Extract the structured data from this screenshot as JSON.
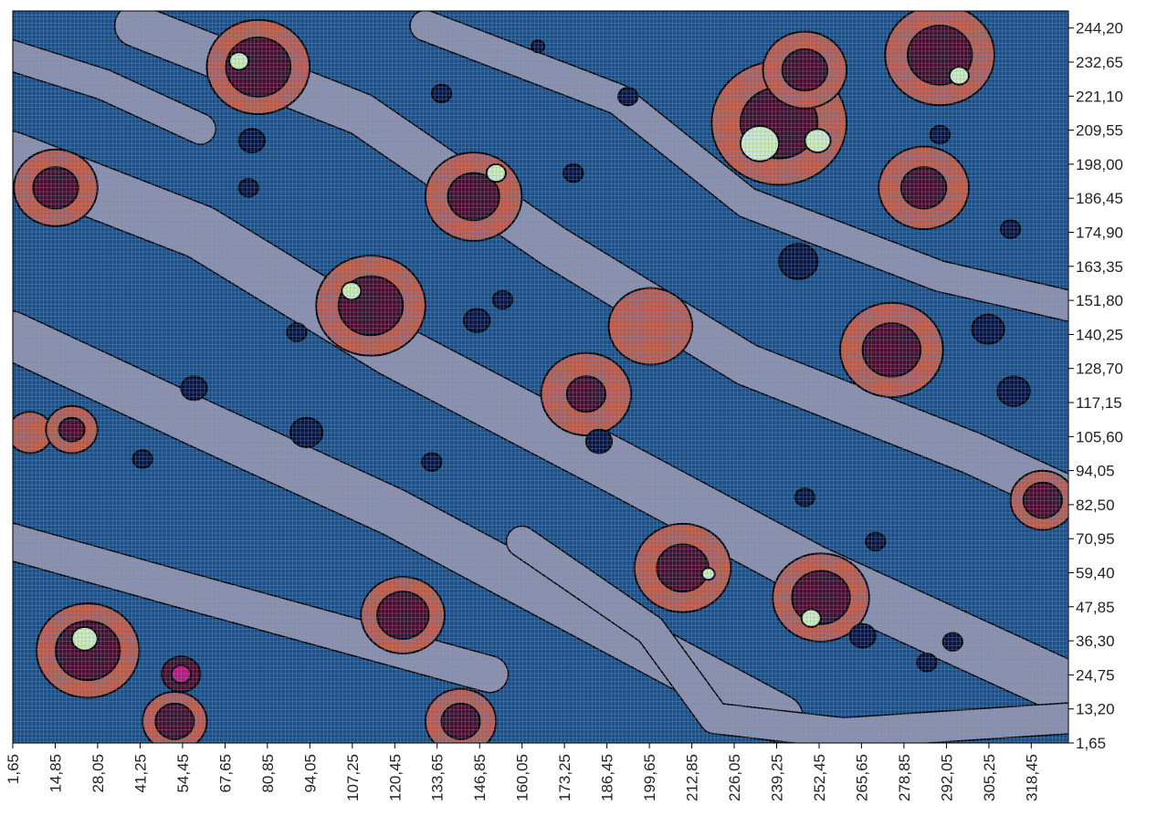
{
  "chart_data": {
    "type": "heatmap",
    "subtype": "filled-contour",
    "title": "",
    "xlabel": "",
    "ylabel": "",
    "x_ticks": [
      "1,65",
      "14,85",
      "28,05",
      "41,25",
      "54,45",
      "67,65",
      "80,85",
      "94,05",
      "107,25",
      "120,45",
      "133,65",
      "146,85",
      "160,05",
      "173,25",
      "186,45",
      "199,65",
      "212,85",
      "226,05",
      "239,25",
      "252,45",
      "265,65",
      "278,85",
      "292,05",
      "305,25",
      "318,45"
    ],
    "y_ticks": [
      "1,65",
      "13,20",
      "24,75",
      "36,30",
      "47,85",
      "59,40",
      "70,95",
      "82,50",
      "94,05",
      "105,60",
      "117,15",
      "128,70",
      "140,25",
      "151,80",
      "163,35",
      "174,90",
      "186,45",
      "198,00",
      "209,55",
      "221,10",
      "232,65",
      "244,20"
    ],
    "xlim": [
      1.65,
      330
    ],
    "ylim": [
      1.65,
      250
    ],
    "y_axis_side": "right",
    "grid": true,
    "colors": {
      "level_0": "#0b1440",
      "level_1": "#1d4f86",
      "level_2": "#8c8da8",
      "level_3": "#b85a4c",
      "level_4": "#4a0e2a",
      "level_5": "#cfe9b9",
      "level_6": "#c0157a",
      "contour_line": "#000000",
      "grid_line": "#7aa9d8"
    },
    "levels": [
      "level_0",
      "level_1",
      "level_2",
      "level_3",
      "level_4",
      "level_5",
      "level_6"
    ],
    "features": [
      {
        "x": 25,
        "y": 33,
        "r": 16,
        "level": 3
      },
      {
        "x": 25,
        "y": 33,
        "r": 10,
        "level": 4
      },
      {
        "x": 24,
        "y": 37,
        "r": 4,
        "level": 5
      },
      {
        "x": 54,
        "y": 25,
        "r": 6,
        "level": 4
      },
      {
        "x": 54,
        "y": 25,
        "r": 3,
        "level": 6
      },
      {
        "x": 52,
        "y": 9,
        "r": 10,
        "level": 3
      },
      {
        "x": 52,
        "y": 9,
        "r": 6,
        "level": 4
      },
      {
        "x": 123,
        "y": 45,
        "r": 13,
        "level": 3
      },
      {
        "x": 123,
        "y": 45,
        "r": 8,
        "level": 4
      },
      {
        "x": 141,
        "y": 9,
        "r": 11,
        "level": 3
      },
      {
        "x": 141,
        "y": 9,
        "r": 6,
        "level": 4
      },
      {
        "x": 210,
        "y": 61,
        "r": 15,
        "level": 3
      },
      {
        "x": 210,
        "y": 61,
        "r": 8,
        "level": 4
      },
      {
        "x": 218,
        "y": 59,
        "r": 2,
        "level": 5
      },
      {
        "x": 253,
        "y": 51,
        "r": 15,
        "level": 3
      },
      {
        "x": 253,
        "y": 51,
        "r": 9,
        "level": 4
      },
      {
        "x": 250,
        "y": 44,
        "r": 3,
        "level": 5
      },
      {
        "x": 322,
        "y": 84,
        "r": 10,
        "level": 3
      },
      {
        "x": 322,
        "y": 84,
        "r": 6,
        "level": 4
      },
      {
        "x": 7,
        "y": 107,
        "r": 7,
        "level": 3
      },
      {
        "x": 20,
        "y": 108,
        "r": 8,
        "level": 3
      },
      {
        "x": 20,
        "y": 108,
        "r": 4,
        "level": 4
      },
      {
        "x": 180,
        "y": 120,
        "r": 14,
        "level": 3
      },
      {
        "x": 180,
        "y": 120,
        "r": 6,
        "level": 4
      },
      {
        "x": 200,
        "y": 143,
        "r": 13,
        "level": 3
      },
      {
        "x": 275,
        "y": 135,
        "r": 16,
        "level": 3
      },
      {
        "x": 275,
        "y": 135,
        "r": 9,
        "level": 4
      },
      {
        "x": 113,
        "y": 150,
        "r": 17,
        "level": 3
      },
      {
        "x": 113,
        "y": 150,
        "r": 10,
        "level": 4
      },
      {
        "x": 107,
        "y": 155,
        "r": 3,
        "level": 5
      },
      {
        "x": 145,
        "y": 187,
        "r": 15,
        "level": 3
      },
      {
        "x": 145,
        "y": 187,
        "r": 8,
        "level": 4
      },
      {
        "x": 152,
        "y": 195,
        "r": 3,
        "level": 5
      },
      {
        "x": 15,
        "y": 190,
        "r": 13,
        "level": 3
      },
      {
        "x": 15,
        "y": 190,
        "r": 7,
        "level": 4
      },
      {
        "x": 78,
        "y": 231,
        "r": 16,
        "level": 3
      },
      {
        "x": 78,
        "y": 231,
        "r": 10,
        "level": 4
      },
      {
        "x": 72,
        "y": 233,
        "r": 3,
        "level": 5
      },
      {
        "x": 240,
        "y": 212,
        "r": 21,
        "level": 3
      },
      {
        "x": 240,
        "y": 212,
        "r": 12,
        "level": 4
      },
      {
        "x": 234,
        "y": 205,
        "r": 6,
        "level": 5
      },
      {
        "x": 252,
        "y": 206,
        "r": 4,
        "level": 5
      },
      {
        "x": 248,
        "y": 230,
        "r": 13,
        "level": 3
      },
      {
        "x": 248,
        "y": 230,
        "r": 7,
        "level": 4
      },
      {
        "x": 285,
        "y": 190,
        "r": 14,
        "level": 3
      },
      {
        "x": 285,
        "y": 190,
        "r": 7,
        "level": 4
      },
      {
        "x": 290,
        "y": 235,
        "r": 17,
        "level": 3
      },
      {
        "x": 290,
        "y": 235,
        "r": 10,
        "level": 4
      },
      {
        "x": 296,
        "y": 228,
        "r": 3,
        "level": 5
      },
      {
        "x": 58,
        "y": 122,
        "r": 4,
        "level": 0
      },
      {
        "x": 42,
        "y": 98,
        "r": 3,
        "level": 0
      },
      {
        "x": 132,
        "y": 97,
        "r": 3,
        "level": 0
      },
      {
        "x": 93,
        "y": 107,
        "r": 5,
        "level": 0
      },
      {
        "x": 184,
        "y": 104,
        "r": 4,
        "level": 0
      },
      {
        "x": 146,
        "y": 145,
        "r": 4,
        "level": 0
      },
      {
        "x": 154,
        "y": 152,
        "r": 3,
        "level": 0
      },
      {
        "x": 246,
        "y": 165,
        "r": 6,
        "level": 0
      },
      {
        "x": 305,
        "y": 142,
        "r": 5,
        "level": 0
      },
      {
        "x": 313,
        "y": 121,
        "r": 5,
        "level": 0
      },
      {
        "x": 248,
        "y": 85,
        "r": 3,
        "level": 0
      },
      {
        "x": 266,
        "y": 38,
        "r": 4,
        "level": 0
      },
      {
        "x": 286,
        "y": 29,
        "r": 3,
        "level": 0
      },
      {
        "x": 294,
        "y": 36,
        "r": 3,
        "level": 0
      },
      {
        "x": 76,
        "y": 206,
        "r": 4,
        "level": 0
      },
      {
        "x": 75,
        "y": 190,
        "r": 3,
        "level": 0
      },
      {
        "x": 135,
        "y": 222,
        "r": 3,
        "level": 0
      },
      {
        "x": 176,
        "y": 195,
        "r": 3,
        "level": 0
      },
      {
        "x": 193,
        "y": 221,
        "r": 3,
        "level": 0
      },
      {
        "x": 290,
        "y": 208,
        "r": 3,
        "level": 0
      },
      {
        "x": 312,
        "y": 176,
        "r": 3,
        "level": 0
      },
      {
        "x": 165,
        "y": 238,
        "r": 2,
        "level": 0
      },
      {
        "x": 270,
        "y": 70,
        "r": 3,
        "level": 0
      },
      {
        "x": 90,
        "y": 141,
        "r": 3,
        "level": 0
      }
    ],
    "ridges": [
      {
        "points": [
          [
            1,
            200
          ],
          [
            60,
            175
          ],
          [
            120,
            135
          ],
          [
            190,
            95
          ],
          [
            250,
            60
          ],
          [
            330,
            20
          ]
        ],
        "width": 18,
        "level": 2
      },
      {
        "points": [
          [
            1,
            140
          ],
          [
            60,
            110
          ],
          [
            120,
            80
          ],
          [
            180,
            45
          ],
          [
            240,
            10
          ]
        ],
        "width": 16,
        "level": 2
      },
      {
        "points": [
          [
            1,
            70
          ],
          [
            50,
            55
          ],
          [
            100,
            40
          ],
          [
            150,
            25
          ]
        ],
        "width": 12,
        "level": 2
      },
      {
        "points": [
          [
            40,
            245
          ],
          [
            110,
            215
          ],
          [
            170,
            170
          ],
          [
            230,
            130
          ],
          [
            300,
            100
          ],
          [
            330,
            85
          ]
        ],
        "width": 14,
        "level": 2
      },
      {
        "points": [
          [
            130,
            245
          ],
          [
            190,
            220
          ],
          [
            230,
            185
          ],
          [
            290,
            160
          ],
          [
            330,
            150
          ]
        ],
        "width": 10,
        "level": 2
      },
      {
        "points": [
          [
            1,
            235
          ],
          [
            30,
            225
          ],
          [
            60,
            210
          ]
        ],
        "width": 10,
        "level": 2
      },
      {
        "points": [
          [
            160,
            70
          ],
          [
            200,
            40
          ],
          [
            220,
            10
          ],
          [
            260,
            5
          ],
          [
            330,
            10
          ]
        ],
        "width": 10,
        "level": 2
      }
    ]
  }
}
